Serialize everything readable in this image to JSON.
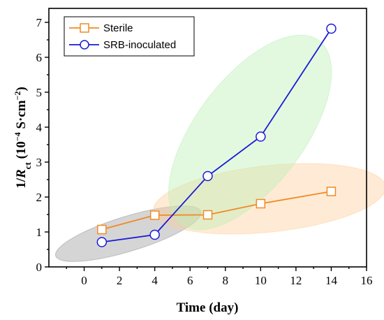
{
  "chart_data": {
    "type": "line",
    "xlabel": "Time (day)",
    "ylabel": {
      "prefix": "1/",
      "symbol": "R",
      "subscript": "ct",
      "units_open": " (10",
      "units_exp": "−4",
      "units_mid": " S·cm",
      "units_exp2": "−2",
      "units_close": ")"
    },
    "xlim": [
      -2,
      16
    ],
    "ylim": [
      0,
      7.4
    ],
    "x_ticks": [
      0,
      2,
      4,
      6,
      8,
      10,
      12,
      14,
      16
    ],
    "y_ticks": [
      0,
      1,
      2,
      3,
      4,
      5,
      6,
      7
    ],
    "grid": false,
    "legend_position": "top-left",
    "series": [
      {
        "name": "Sterile",
        "color": "#f08a24",
        "marker": "square",
        "x": [
          1,
          4,
          7,
          10,
          14
        ],
        "y": [
          1.07,
          1.48,
          1.49,
          1.81,
          2.16
        ]
      },
      {
        "name": "SRB-inoculated",
        "color": "#1a1ad6",
        "marker": "circle",
        "x": [
          1,
          4,
          7,
          10,
          14
        ],
        "y": [
          0.71,
          0.92,
          2.6,
          3.73,
          6.82
        ]
      }
    ],
    "highlight_regions": [
      {
        "color": "#9b9b9b",
        "cx": 2.5,
        "cy": 0.95,
        "rx": 4.3,
        "ry": 0.5,
        "angle_deg": -17
      },
      {
        "color": "#ffcf9a",
        "cx": 10.5,
        "cy": 1.95,
        "rx": 6.6,
        "ry": 0.95,
        "angle_deg": -6
      },
      {
        "color": "#b9f0b5",
        "cx": 9.4,
        "cy": 3.85,
        "rx": 6.5,
        "ry": 1.55,
        "angle_deg": -53
      }
    ]
  }
}
